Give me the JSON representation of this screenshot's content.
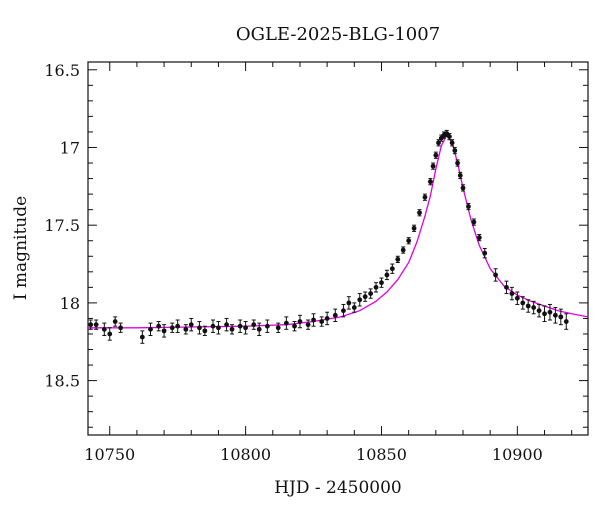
{
  "chart_data": {
    "type": "scatter",
    "title": "OGLE-2025-BLG-1007",
    "xlabel": "HJD - 2450000",
    "ylabel": "I magnitude",
    "xlim": [
      10742,
      10926
    ],
    "ylim": [
      18.85,
      16.45
    ],
    "y_inverted": true,
    "x_ticks": [
      10750,
      10800,
      10850,
      10900
    ],
    "y_ticks": [
      16.5,
      17,
      17.5,
      18,
      18.5
    ],
    "grid": false,
    "colors": {
      "points": "#111111",
      "model": "#e000e0",
      "axes": "#111111"
    },
    "series": [
      {
        "type": "scatter_errorbars",
        "x": [
          10743,
          10745,
          10748,
          10750,
          10752,
          10754,
          10762,
          10765,
          10768,
          10770,
          10773,
          10775,
          10778,
          10780,
          10783,
          10785,
          10788,
          10790,
          10793,
          10795,
          10798,
          10800,
          10803,
          10805,
          10808,
          10812,
          10815,
          10818,
          10820,
          10823,
          10825,
          10828,
          10830,
          10833,
          10836,
          10838,
          10840,
          10842,
          10844,
          10846,
          10848,
          10850,
          10852,
          10854,
          10856,
          10858,
          10860,
          10862,
          10864,
          10866,
          10868,
          10869,
          10870,
          10871,
          10872,
          10873,
          10874,
          10875,
          10876,
          10877,
          10878,
          10879,
          10880,
          10882,
          10884,
          10886,
          10888,
          10892,
          10896,
          10898,
          10900,
          10902,
          10904,
          10906,
          10908,
          10910,
          10912,
          10914,
          10916,
          10918
        ],
        "y": [
          18.14,
          18.14,
          18.17,
          18.2,
          18.12,
          18.16,
          18.22,
          18.17,
          18.15,
          18.18,
          18.16,
          18.15,
          18.17,
          18.14,
          18.16,
          18.18,
          18.15,
          18.16,
          18.14,
          18.17,
          18.15,
          18.16,
          18.14,
          18.17,
          18.15,
          18.16,
          18.13,
          18.15,
          18.12,
          18.14,
          18.11,
          18.12,
          18.1,
          18.08,
          18.05,
          18.0,
          18.03,
          17.98,
          17.96,
          17.94,
          17.9,
          17.87,
          17.82,
          17.78,
          17.72,
          17.66,
          17.6,
          17.52,
          17.42,
          17.32,
          17.22,
          17.12,
          17.05,
          16.97,
          16.94,
          16.92,
          16.91,
          16.93,
          16.97,
          17.02,
          17.1,
          17.18,
          17.26,
          17.38,
          17.48,
          17.58,
          17.68,
          17.82,
          17.9,
          17.94,
          17.97,
          18.0,
          18.02,
          18.03,
          18.05,
          18.07,
          18.06,
          18.08,
          18.09,
          18.12
        ],
        "yerr": [
          0.03,
          0.03,
          0.04,
          0.04,
          0.03,
          0.03,
          0.04,
          0.04,
          0.03,
          0.04,
          0.03,
          0.04,
          0.03,
          0.04,
          0.04,
          0.03,
          0.04,
          0.04,
          0.04,
          0.03,
          0.04,
          0.04,
          0.03,
          0.04,
          0.04,
          0.03,
          0.04,
          0.03,
          0.04,
          0.03,
          0.04,
          0.03,
          0.04,
          0.04,
          0.04,
          0.04,
          0.03,
          0.04,
          0.03,
          0.03,
          0.03,
          0.03,
          0.03,
          0.03,
          0.02,
          0.02,
          0.02,
          0.02,
          0.02,
          0.02,
          0.02,
          0.02,
          0.02,
          0.02,
          0.02,
          0.02,
          0.02,
          0.02,
          0.02,
          0.02,
          0.02,
          0.02,
          0.02,
          0.02,
          0.02,
          0.02,
          0.03,
          0.04,
          0.04,
          0.04,
          0.04,
          0.04,
          0.04,
          0.04,
          0.04,
          0.05,
          0.05,
          0.05,
          0.05,
          0.05
        ]
      },
      {
        "type": "model_line",
        "x": [
          10742,
          10760,
          10780,
          10800,
          10815,
          10825,
          10835,
          10842,
          10848,
          10852,
          10856,
          10860,
          10863,
          10866,
          10868,
          10870,
          10872,
          10874,
          10876,
          10878,
          10880,
          10883,
          10886,
          10890,
          10895,
          10900,
          10905,
          10910,
          10915,
          10920,
          10926
        ],
        "y": [
          18.16,
          18.16,
          18.155,
          18.15,
          18.14,
          18.12,
          18.09,
          18.05,
          17.99,
          17.93,
          17.85,
          17.74,
          17.61,
          17.44,
          17.31,
          17.14,
          16.99,
          16.92,
          16.97,
          17.1,
          17.26,
          17.47,
          17.63,
          17.78,
          17.89,
          17.95,
          17.99,
          18.02,
          18.05,
          18.07,
          18.09
        ]
      }
    ]
  }
}
